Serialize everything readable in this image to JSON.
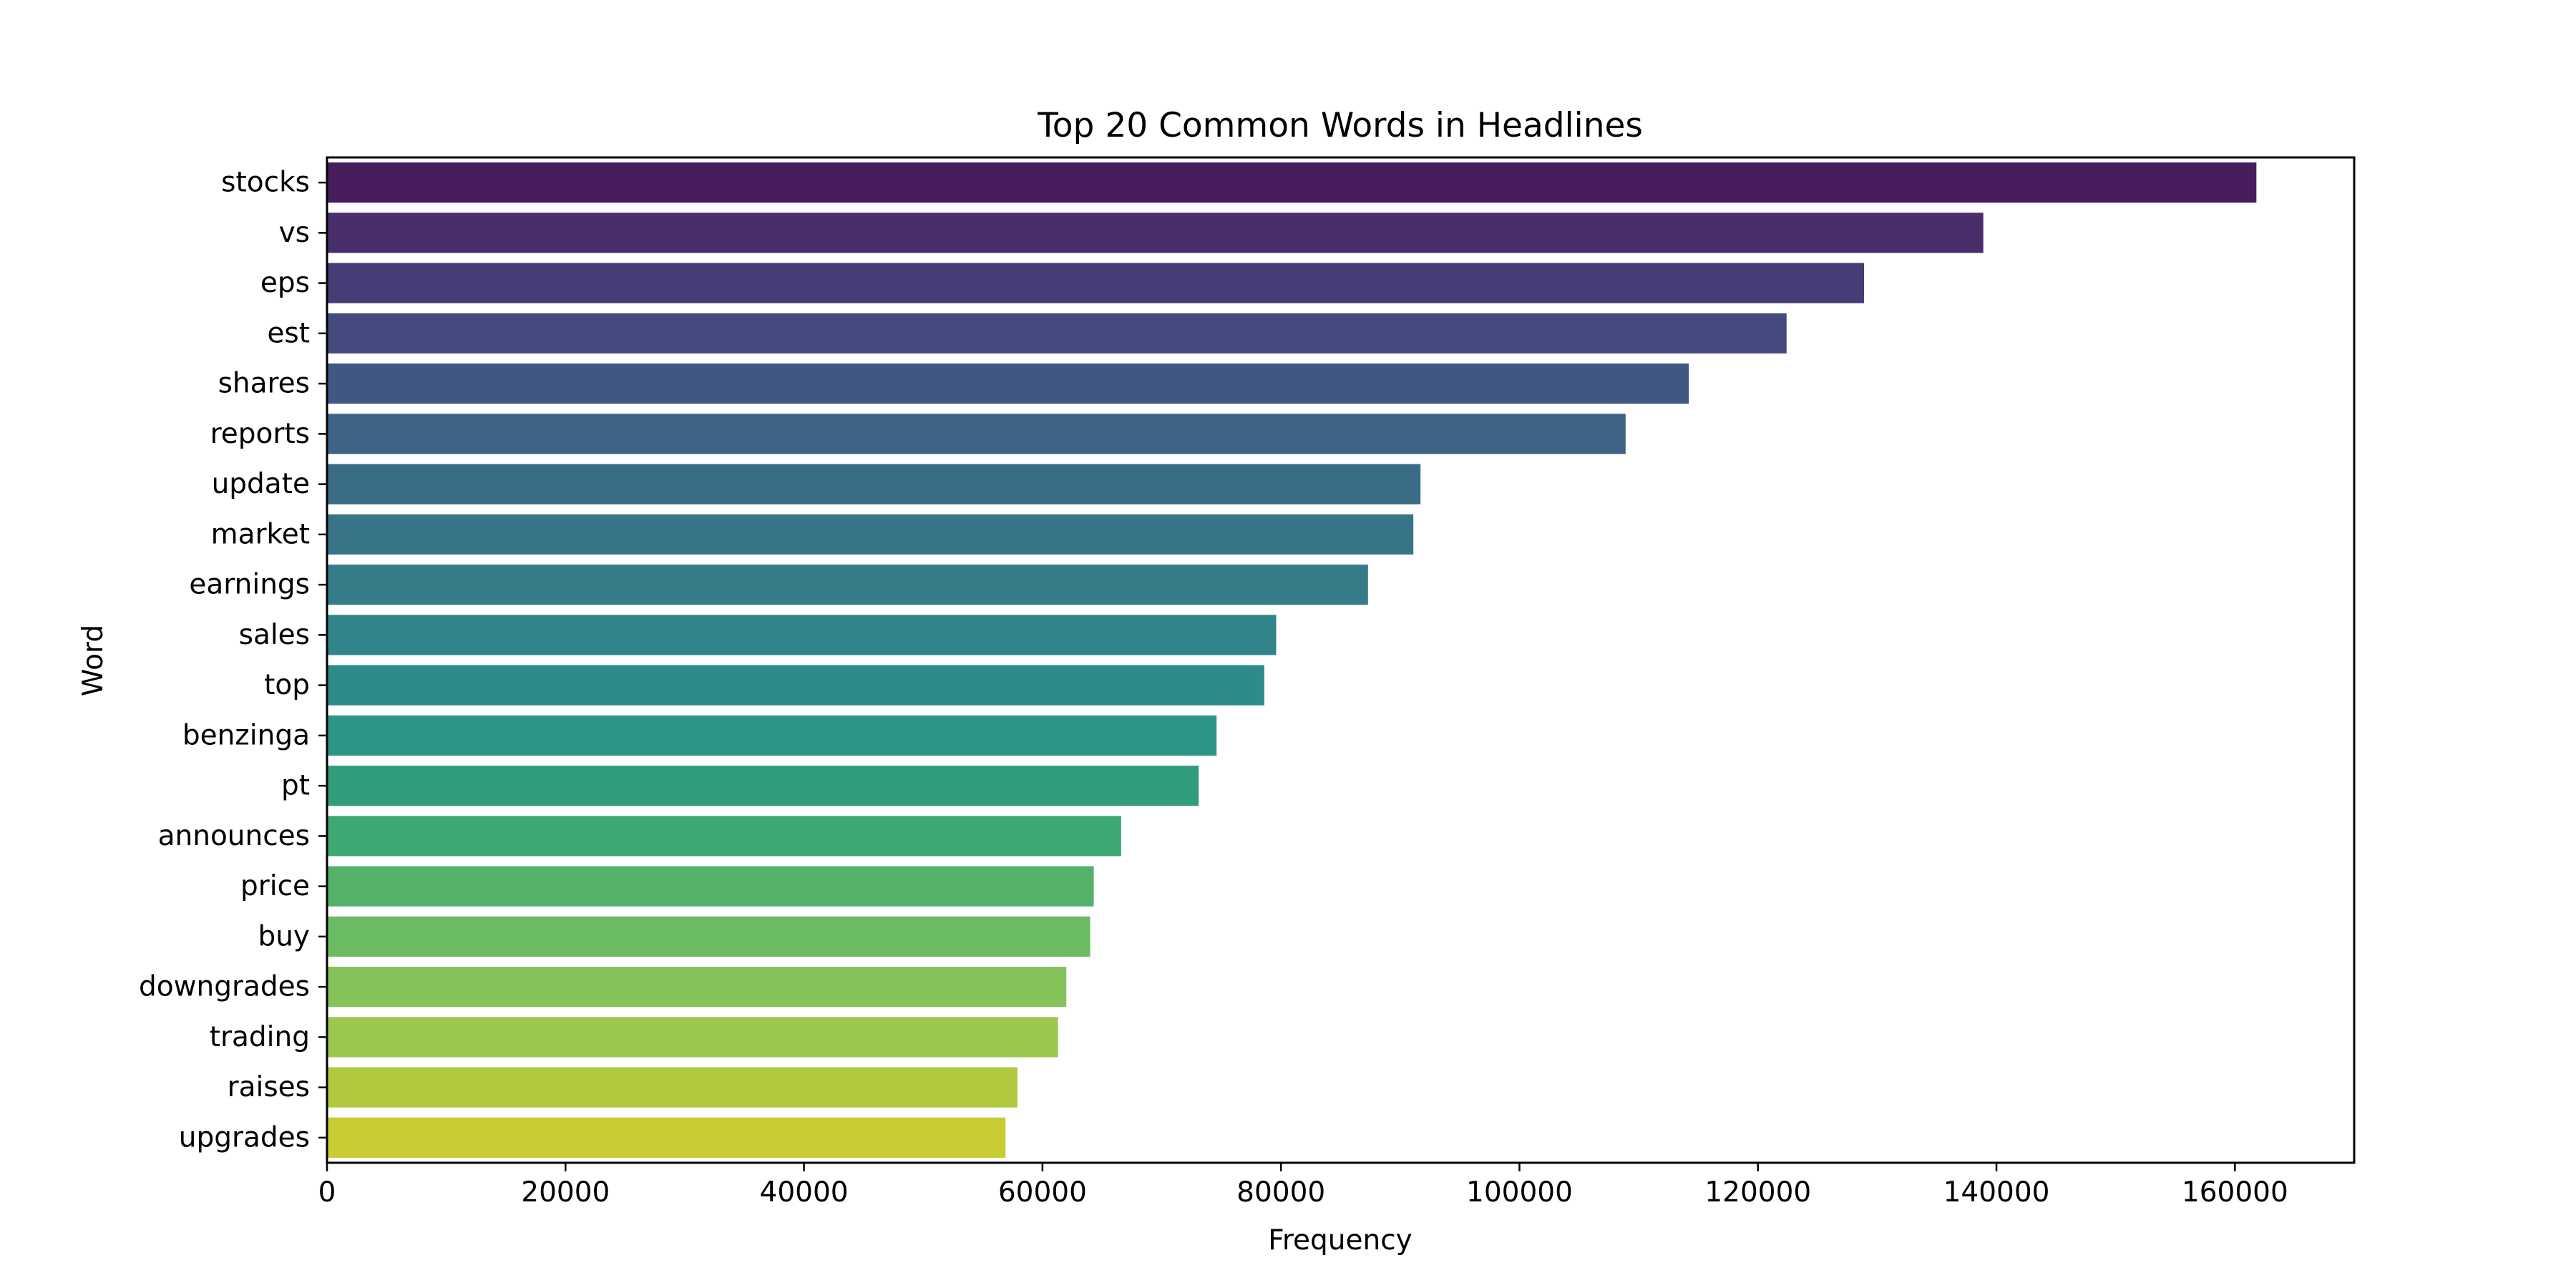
{
  "chart_data": {
    "type": "bar",
    "orientation": "horizontal",
    "title": "Top 20 Common Words in Headlines",
    "xlabel": "Frequency",
    "ylabel": "Word",
    "categories": [
      "stocks",
      "vs",
      "eps",
      "est",
      "shares",
      "reports",
      "update",
      "market",
      "earnings",
      "sales",
      "top",
      "benzinga",
      "pt",
      "announces",
      "price",
      "buy",
      "downgrades",
      "trading",
      "raises",
      "upgrades"
    ],
    "values": [
      161800,
      138900,
      128900,
      122400,
      114200,
      108900,
      91700,
      91100,
      87300,
      79600,
      78600,
      74600,
      73100,
      66600,
      64300,
      64000,
      62000,
      61300,
      57900,
      56900
    ],
    "xlim": [
      0,
      170000
    ],
    "xticks": [
      0,
      20000,
      40000,
      60000,
      80000,
      100000,
      120000,
      140000,
      160000
    ],
    "xtick_labels": [
      "0",
      "20000",
      "40000",
      "60000",
      "80000",
      "100000",
      "120000",
      "140000",
      "160000"
    ],
    "colormap": "viridis",
    "colors": [
      "#471d5d",
      "#482f6b",
      "#473c75",
      "#454a7e",
      "#425682",
      "#3f6384",
      "#3b6c86",
      "#387487",
      "#357c88",
      "#318489",
      "#2d8b88",
      "#2c9585",
      "#329d7c",
      "#3fa773",
      "#53b168",
      "#6bbb62",
      "#84c25a",
      "#9bc74e",
      "#b0c93e",
      "#c7cc33"
    ],
    "grid": false,
    "legend": "none"
  }
}
